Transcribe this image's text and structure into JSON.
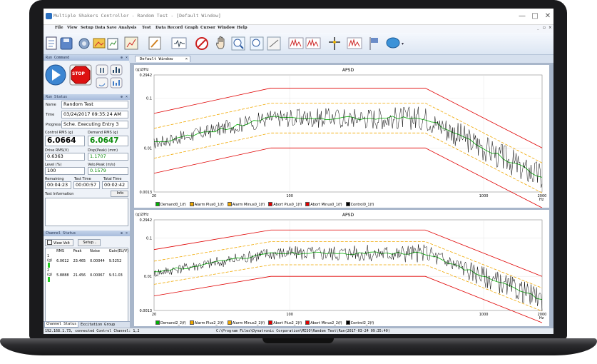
{
  "window": {
    "title": "Multiple Shakers Controller - Random Test - [Default Window]"
  },
  "menu": [
    "File",
    "View",
    "Setup",
    "Data Save",
    "Analysis",
    "Test",
    "Data Record",
    "Graph",
    "Cursor",
    "Window",
    "Help"
  ],
  "tab": {
    "label": "Default Window"
  },
  "run_command": {
    "header": "Run Command",
    "stop_label": "STOP"
  },
  "run_status": {
    "header": "Run Status",
    "name_label": "Name",
    "name": "Random Test",
    "time_label": "Time",
    "time": "03/24/2017 09:35:24 AM",
    "progress_label": "Progress",
    "progress": "Sche. Executing Entry 3",
    "control_rms_label": "Control RMS (g)",
    "control_rms": "6.0664",
    "demand_rms_label": "Demand RMS (g)",
    "demand_rms": "6.0647",
    "drive_rms_label": "Drive RMS(V)",
    "drive_rms": "0.6363",
    "disp_label": "Disp(Peak) (mm)",
    "disp": "1.1707",
    "level_label": "Level (%)",
    "level": "100",
    "velo_label": "Velo.Peak (m/s)",
    "velo": "0.1579",
    "remaining_label": "Remaining",
    "remaining": "00:04:23",
    "test_time_label": "Test Time",
    "test_time": "00:00:57",
    "total_time_label": "Total Time",
    "total_time": "00:02:42",
    "test_info_label": "Test Information",
    "info_button": "Info"
  },
  "channel_status": {
    "header": "Channel Status",
    "view_volt": "View Volt",
    "setup": "Setup...",
    "columns": [
      "",
      "RMS",
      "Peak",
      "Noise",
      "Gain(EU/V)"
    ],
    "rows": [
      {
        "ch": "1 (g)",
        "rms": "6.0612",
        "peak": "23.465",
        "noise": "0.00044",
        "gain": "9.5252"
      },
      {
        "ch": "2 (g)",
        "rms": "5.8888",
        "peak": "21.456",
        "noise": "0.00067",
        "gain": "9.51.03"
      }
    ],
    "tabs": [
      "Channel Status",
      "Excitation Group"
    ]
  },
  "chart_data": [
    {
      "type": "line",
      "title": "APSD",
      "ylabel": "(g)2/Hz",
      "yticks": [
        "0.2942",
        "0.1",
        "0.01",
        "0.0013"
      ],
      "xticks": [
        "20",
        "100",
        "1000",
        "2000"
      ],
      "xunit": "Hz",
      "xlim": [
        20,
        2000
      ],
      "ylim": [
        0.0013,
        0.2942
      ],
      "log_x": true,
      "log_y": true,
      "series": [
        {
          "name": "Demand0_1(f)",
          "color": "#00b000"
        },
        {
          "name": "Alarm Plus0_1(f)",
          "color": "#f0a800"
        },
        {
          "name": "Alarm Minus0_1(f)",
          "color": "#f0a800"
        },
        {
          "name": "Abort Plus0_1(f)",
          "color": "#e00000"
        },
        {
          "name": "Abort Minus0_1(f)",
          "color": "#e00000"
        },
        {
          "name": "Control0_1(f)",
          "color": "#000000"
        }
      ],
      "profile": {
        "x": [
          20,
          80,
          500,
          2000
        ],
        "demand": [
          0.0124,
          0.04,
          0.04,
          0.0025
        ]
      }
    },
    {
      "type": "line",
      "title": "APSD",
      "ylabel": "(g)2/Hz",
      "yticks": [
        "0.2942",
        "0.1",
        "0.01",
        "0.0013"
      ],
      "xticks": [
        "20",
        "100",
        "1000",
        "2000"
      ],
      "xunit": "Hz",
      "xlim": [
        20,
        2000
      ],
      "ylim": [
        0.0013,
        0.2942
      ],
      "log_x": true,
      "log_y": true,
      "series": [
        {
          "name": "Demand2_2(f)",
          "color": "#00b000"
        },
        {
          "name": "Alarm Plus2_2(f)",
          "color": "#f0a800"
        },
        {
          "name": "Alarm Minus2_2(f)",
          "color": "#f0a800"
        },
        {
          "name": "Abort Plus2_2(f)",
          "color": "#e00000"
        },
        {
          "name": "Abort Minus2_2(f)",
          "color": "#e00000"
        },
        {
          "name": "Control2_2(f)",
          "color": "#000000"
        }
      ],
      "profile": {
        "x": [
          20,
          80,
          500,
          2000
        ],
        "demand": [
          0.0124,
          0.04,
          0.04,
          0.0025
        ]
      }
    }
  ],
  "status_bar": {
    "text": "192.168.1.73, connected     Control Channel: 1,2",
    "path": "C:\\Program Files\\Dynatronic Corporation\\MISO\\Random Test\\Run(2017-03-24 09:35:40)"
  }
}
